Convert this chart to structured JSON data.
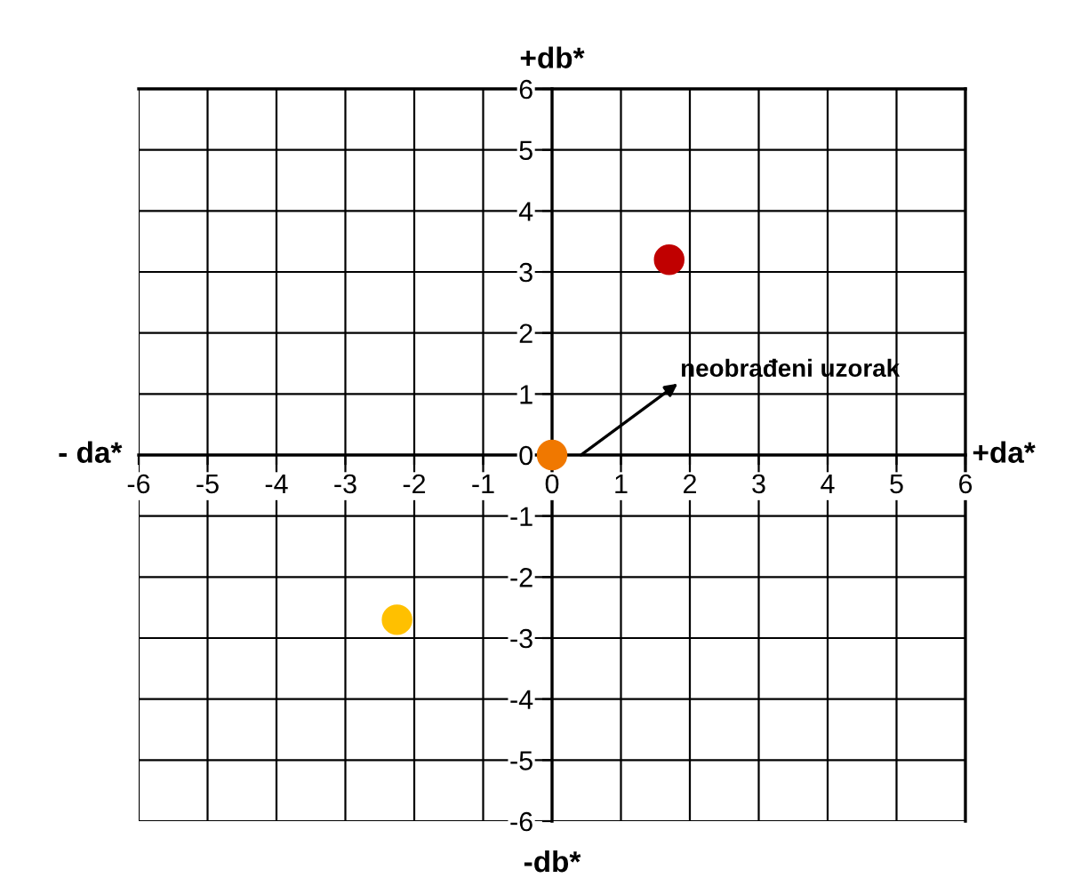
{
  "chart_data": {
    "type": "scatter",
    "xlabel": "+da*",
    "ylabel": "+db*",
    "series": [
      {
        "color": "#c00000",
        "x": [
          1.7
        ],
        "values": [
          3.2
        ]
      },
      {
        "color": "#f07800",
        "x": [
          0
        ],
        "values": [
          0
        ]
      },
      {
        "color": "#ffc000",
        "x": [
          -2.25
        ],
        "values": [
          -2.7
        ]
      }
    ],
    "annotations": [
      "- da*",
      "-db*",
      "neobrađeni uzorak"
    ],
    "xlim": [
      -6,
      6
    ],
    "ylim": [
      -6,
      6
    ],
    "xticks": [
      -6,
      -5,
      -4,
      -3,
      -2,
      -1,
      0,
      1,
      2,
      3,
      4,
      5,
      6
    ],
    "yticks": [
      -6,
      -5,
      -4,
      -3,
      -2,
      -1,
      0,
      1,
      2,
      3,
      4,
      5,
      6
    ],
    "grid": true,
    "legend": false,
    "marker": "circle"
  }
}
